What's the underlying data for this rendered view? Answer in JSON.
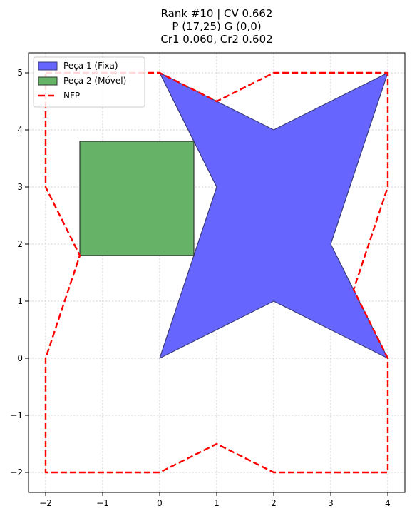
{
  "chart_data": {
    "type": "polygon-plot",
    "title_lines": [
      "Rank #10 | CV 0.662",
      "P (17,25) G (0,0)",
      "Cr1 0.060, Cr2 0.602"
    ],
    "xlim": [
      -2.3,
      4.3
    ],
    "ylim": [
      -2.35,
      5.35
    ],
    "xticks": [
      -2,
      -1,
      0,
      1,
      2,
      3,
      4
    ],
    "yticks": [
      -2,
      -1,
      0,
      1,
      2,
      3,
      4,
      5
    ],
    "xtick_labels": [
      "−2",
      "−1",
      "0",
      "1",
      "2",
      "3",
      "4"
    ],
    "ytick_labels": [
      "−2",
      "−1",
      "0",
      "1",
      "2",
      "3",
      "4",
      "5"
    ],
    "grid": true,
    "legend_position": "upper-left",
    "series": [
      {
        "name": "Peça 1 (Fixa)",
        "kind": "filled-polygon",
        "color": "#6666ff",
        "edge": "#3b3b7a",
        "points": [
          [
            0,
            5
          ],
          [
            1,
            4.5
          ],
          [
            2,
            4
          ],
          [
            4,
            5
          ],
          [
            3,
            2
          ],
          [
            4,
            0
          ],
          [
            2,
            1
          ],
          [
            0,
            0
          ],
          [
            1,
            3
          ]
        ]
      },
      {
        "name": "Peça 2 (Móvel)",
        "kind": "filled-polygon",
        "color": "#66b266",
        "edge": "#333333",
        "points": [
          [
            -1.4,
            1.8
          ],
          [
            0.6,
            1.8
          ],
          [
            0.6,
            3.8
          ],
          [
            -1.4,
            3.8
          ]
        ]
      },
      {
        "name": "NFP",
        "kind": "dashed-line",
        "color": "#ff0000",
        "points": [
          [
            -2,
            5
          ],
          [
            0,
            5
          ],
          [
            1,
            4.5
          ],
          [
            2,
            5
          ],
          [
            4,
            5
          ],
          [
            4,
            3
          ],
          [
            3.4,
            1.2
          ],
          [
            4,
            0
          ],
          [
            4,
            -2
          ],
          [
            2,
            -2
          ],
          [
            1,
            -1.5
          ],
          [
            0,
            -2
          ],
          [
            -2,
            -2
          ],
          [
            -2,
            0
          ],
          [
            -1.4,
            1.8
          ],
          [
            -2,
            3
          ],
          [
            -2,
            5
          ]
        ]
      }
    ]
  }
}
